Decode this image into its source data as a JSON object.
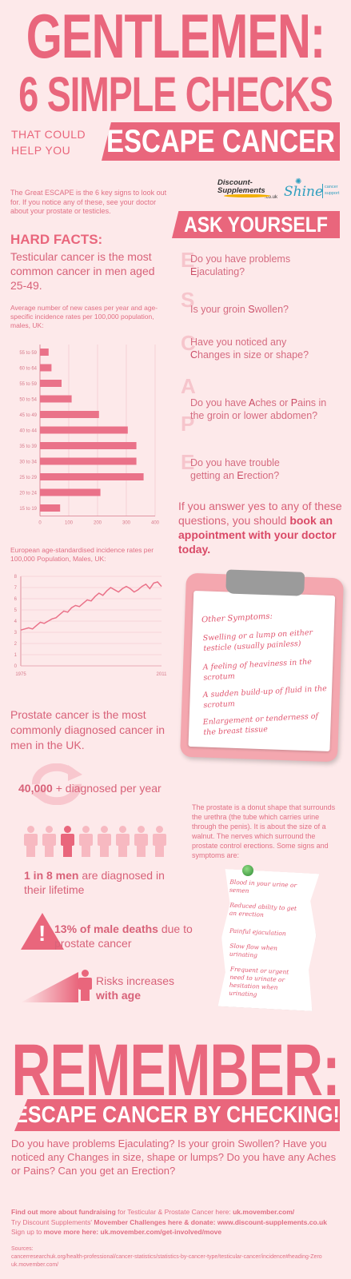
{
  "header": {
    "line1": "GENTLEMEN:",
    "line2": "6 SIMPLE CHECKS",
    "that_could": "THAT COULD",
    "help_you": "HELP YOU",
    "banner": "ESCAPE CANCER"
  },
  "logos": {
    "discount": "Discount-Supplements",
    "discount_suffix": ".co.uk",
    "shine": "Shine",
    "shine_sub1": "cancer",
    "shine_sub2": "support"
  },
  "intro": "The Great ESCAPE is the 6 key signs to look out for. If you notice any of these, see your doctor about your prostate or testicles.",
  "ask_banner": "ASK YOURSELF",
  "hard_facts": "HARD FACTS:",
  "testicular_fact": "Testicular cancer is the most common cancer in men aged 25-49.",
  "bar_caption": "Average number of new cases per year and age-specific incidence rates per 100,000 population, males, UK:",
  "line_caption": "European age-standardised incidence rates per 100,000 Population, Males, UK:",
  "escape_letters": [
    "E",
    "S",
    "C",
    "A",
    "P",
    "E"
  ],
  "questions": [
    {
      "pre": "Do you have problems",
      "key": "E",
      "post": "jaculating?"
    },
    {
      "pre": "Is your groin ",
      "key": "S",
      "post": "wollen?"
    },
    {
      "pre": "Have you noticed any",
      "key": "C",
      "post": "hanges in size or shape?"
    },
    {
      "pre": "Do you have ",
      "key": "A",
      "mid": "ches or ",
      "key2": "P",
      "post": "ains in the groin or lower abdomen?"
    },
    {
      "pre": "Do you have trouble getting an ",
      "key": "E",
      "post": "rection?"
    }
  ],
  "answer_pre": "If you answer yes to any of these questions, you should ",
  "answer_bold": "book an appointment with your doctor today.",
  "clipboard": {
    "title": "Other Symptoms:",
    "items": [
      "Swelling or a lump on either testicle (usually painless)",
      "A feeling of heaviness in the scrotum",
      "A sudden build-up of fluid in the scrotum",
      "Enlargement or tenderness of the breast tissue"
    ]
  },
  "prostate_fact": "Prostate cancer is the most commonly diagnosed cancer in men in the UK.",
  "diagnosed_num": "40,000",
  "diagnosed_text": " + diagnosed per year",
  "one_in_8_bold": "1 in 8 men",
  "one_in_8_text": " are diagnosed in their lifetime",
  "deaths_bold": "13% of male deaths",
  "deaths_text": " due to prostate cancer",
  "risk_pre": "Risks increases ",
  "risk_bold": "with age",
  "prostate_desc": "The prostate is a donut shape that surrounds the urethra (the tube which carries urine through the penis). It is about the size of a walnut. The nerves which surround the prostate control erections. Some signs and symptoms are:",
  "note_items": [
    "Blood in your urine or semen",
    "Reduced ability to get an erection",
    "Painful ejaculation",
    "Slow flow when urinating",
    "Frequent or urgent need to urinate or hesitation when urinating"
  ],
  "remember": "REMEMBER:",
  "remember_banner": "ESCAPE CANCER BY CHECKING!",
  "remember_text": "Do you have problems Ejaculating? Is your groin Swollen? Have you noticed any Changes in size, shape or lumps? Do you have any Aches or Pains? Can you get an Erection?",
  "footer": {
    "line1_a": "Find out more about fundraising",
    "line1_b": " for Testicular & Prostate Cancer here: ",
    "line1_c": "uk.movember.com/",
    "line2_a": "Try Discount Supplements' ",
    "line2_b": "Movember Challenges here & donate:  ",
    "line2_c": "www.discount-supplements.co.uk",
    "line3_a": "Sign up to ",
    "line3_b": "move more here: uk.movember.com/get-involved/move",
    "sources_label": "Sources:",
    "source1": "cancerresearchuk.org/health-professional/cancer-statistics/statistics-by-cancer-type/testicular-cancer/incidence#heading-Zero",
    "source2": "uk.movember.com/"
  },
  "colors": {
    "accent": "#e9667c",
    "background": "#fde9ea",
    "bars": "#ea7289"
  },
  "chart_data": [
    {
      "type": "bar",
      "orientation": "horizontal",
      "categories": [
        "55 to 59",
        "60 to 64",
        "55 to 59",
        "50 to 54",
        "45 to 49",
        "40 to 44",
        "35 to 39",
        "30 to 34",
        "25 to 29",
        "20 to 24",
        "15 to 19"
      ],
      "values": [
        30,
        40,
        75,
        110,
        205,
        305,
        335,
        335,
        360,
        210,
        70
      ],
      "xticks": [
        "0",
        "100",
        "200",
        "300",
        "400"
      ],
      "xlim": [
        0,
        400
      ]
    },
    {
      "type": "line",
      "x": [
        1975,
        1976,
        1977,
        1978,
        1979,
        1980,
        1981,
        1982,
        1983,
        1984,
        1985,
        1986,
        1987,
        1988,
        1989,
        1990,
        1991,
        1992,
        1993,
        1994,
        1995,
        1996,
        1997,
        1998,
        1999,
        2000,
        2001,
        2002,
        2003,
        2004,
        2005,
        2006,
        2007,
        2008,
        2009,
        2010,
        2011
      ],
      "values": [
        3.2,
        3.3,
        3.4,
        3.3,
        3.6,
        3.9,
        3.8,
        4.0,
        4.2,
        4.3,
        4.6,
        4.9,
        4.8,
        5.2,
        5.4,
        5.3,
        5.6,
        5.9,
        5.8,
        6.2,
        6.5,
        6.3,
        6.7,
        7.0,
        6.8,
        6.6,
        6.9,
        7.1,
        6.9,
        6.6,
        6.8,
        7.1,
        7.3,
        6.9,
        7.4,
        7.5,
        7.1
      ],
      "xticks": [
        "1975",
        "2011"
      ],
      "yticks": [
        "0",
        "1",
        "2",
        "3",
        "4",
        "5",
        "6",
        "7",
        "8"
      ],
      "ylim": [
        0,
        8
      ]
    }
  ]
}
